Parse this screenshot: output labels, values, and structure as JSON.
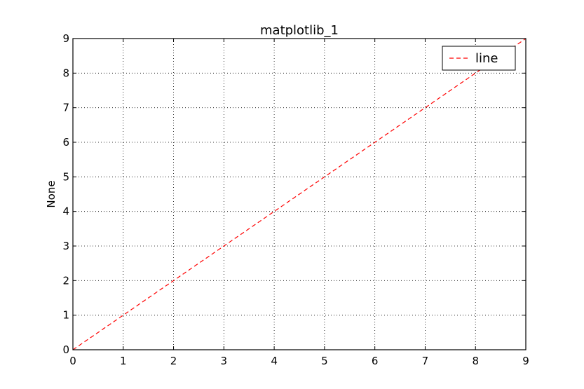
{
  "chart_data": {
    "type": "line",
    "title": "matplotlib_1",
    "xlabel": "",
    "ylabel": "None",
    "xlim": [
      0,
      9
    ],
    "ylim": [
      0,
      9
    ],
    "xticks": [
      "0",
      "1",
      "2",
      "3",
      "4",
      "5",
      "6",
      "7",
      "8",
      "9"
    ],
    "yticks": [
      "0",
      "1",
      "2",
      "3",
      "4",
      "5",
      "6",
      "7",
      "8",
      "9"
    ],
    "grid": true,
    "legend_position": "top-right",
    "series": [
      {
        "name": "line",
        "x": [
          0,
          1,
          2,
          3,
          4,
          5,
          6,
          7,
          8,
          9
        ],
        "y": [
          0,
          1,
          2,
          3,
          4,
          5,
          6,
          7,
          8,
          9
        ],
        "color": "#ff0000",
        "linestyle": "dashed"
      }
    ]
  }
}
